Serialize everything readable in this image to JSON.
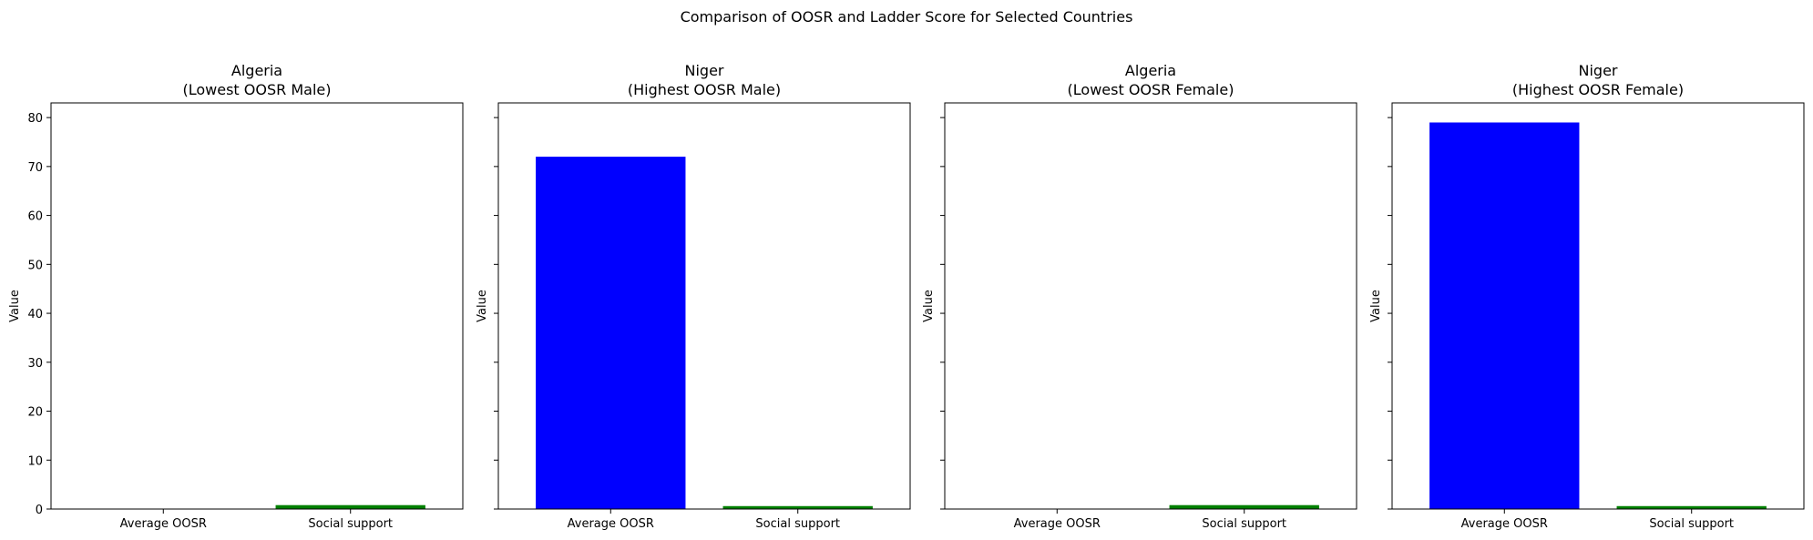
{
  "suptitle": "Comparison of OOSR and Ladder Score for Selected Countries",
  "colors": {
    "oosr": "#0000ff",
    "social": "#008000",
    "axis": "#000000"
  },
  "chart_data": [
    {
      "type": "bar",
      "title_line1": "Algeria",
      "title_line2": "(Lowest OOSR Male)",
      "categories": [
        "Average OOSR",
        "Social support"
      ],
      "values": [
        0.0,
        0.8
      ],
      "bar_colors": [
        "#0000ff",
        "#008000"
      ],
      "ylabel": "Value",
      "ylim": [
        0,
        83
      ],
      "yticks": [
        0,
        10,
        20,
        30,
        40,
        50,
        60,
        70,
        80
      ],
      "show_ytick_labels": true
    },
    {
      "type": "bar",
      "title_line1": "Niger",
      "title_line2": "(Highest OOSR Male)",
      "categories": [
        "Average OOSR",
        "Social support"
      ],
      "values": [
        72.0,
        0.6
      ],
      "bar_colors": [
        "#0000ff",
        "#008000"
      ],
      "ylabel": "Value",
      "ylim": [
        0,
        83
      ],
      "yticks": [
        0,
        10,
        20,
        30,
        40,
        50,
        60,
        70,
        80
      ],
      "show_ytick_labels": false
    },
    {
      "type": "bar",
      "title_line1": "Algeria",
      "title_line2": "(Lowest OOSR Female)",
      "categories": [
        "Average OOSR",
        "Social support"
      ],
      "values": [
        0.0,
        0.8
      ],
      "bar_colors": [
        "#0000ff",
        "#008000"
      ],
      "ylabel": "Value",
      "ylim": [
        0,
        83
      ],
      "yticks": [
        0,
        10,
        20,
        30,
        40,
        50,
        60,
        70,
        80
      ],
      "show_ytick_labels": false
    },
    {
      "type": "bar",
      "title_line1": "Niger",
      "title_line2": "(Highest OOSR Female)",
      "categories": [
        "Average OOSR",
        "Social support"
      ],
      "values": [
        79.0,
        0.6
      ],
      "bar_colors": [
        "#0000ff",
        "#008000"
      ],
      "ylabel": "Value",
      "ylim": [
        0,
        83
      ],
      "yticks": [
        0,
        10,
        20,
        30,
        40,
        50,
        60,
        70,
        80
      ],
      "show_ytick_labels": false
    }
  ]
}
